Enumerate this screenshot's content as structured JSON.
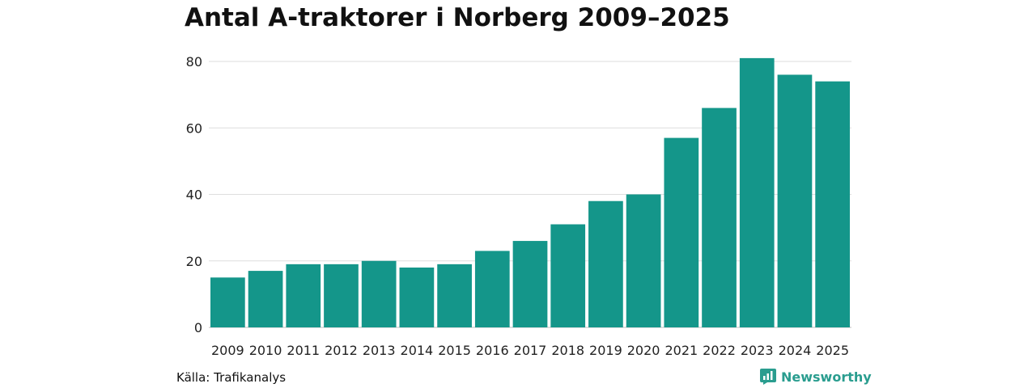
{
  "chart_data": {
    "type": "bar",
    "title": "Antal A-traktorer i Norberg 2009–2025",
    "categories": [
      "2009",
      "2010",
      "2011",
      "2012",
      "2013",
      "2014",
      "2015",
      "2016",
      "2017",
      "2018",
      "2019",
      "2020",
      "2021",
      "2022",
      "2023",
      "2024",
      "2025"
    ],
    "values": [
      15,
      17,
      19,
      19,
      20,
      18,
      19,
      23,
      26,
      31,
      38,
      40,
      57,
      66,
      81,
      76,
      74
    ],
    "xlabel": "",
    "ylabel": "",
    "ylim": [
      0,
      80
    ],
    "yticks": [
      0,
      20,
      40,
      60,
      80
    ],
    "bar_color": "#14968a",
    "grid": true
  },
  "footer": {
    "source": "Källa: Trafikanalys",
    "brand": "Newsworthy",
    "brand_icon": "newsworthy-logo-icon",
    "brand_color": "#2a9d8f"
  }
}
